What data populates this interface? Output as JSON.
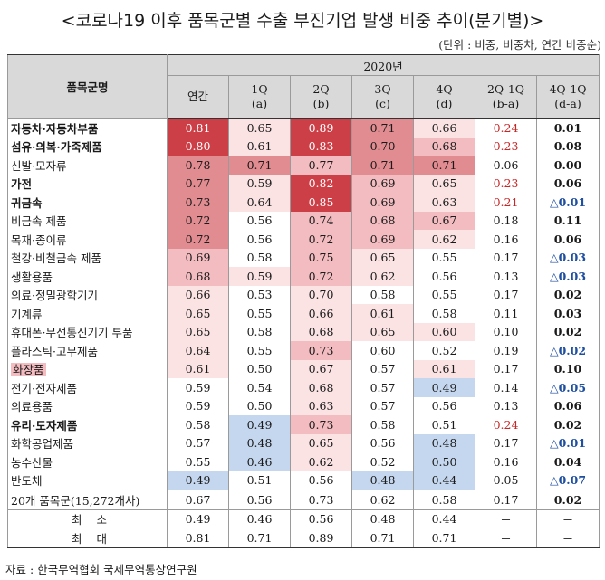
{
  "title": "<코로나19 이후 품목군별 수출 부진기업 발생 비중 추이(분기별)>",
  "unit": "(단위 : 비중, 비중차, 연간 비중순)",
  "header": {
    "item_col": "품목군명",
    "period": "2020년",
    "cols": [
      {
        "l1": "연간",
        "l2": ""
      },
      {
        "l1": "1Q",
        "l2": "(a)"
      },
      {
        "l1": "2Q",
        "l2": "(b)"
      },
      {
        "l1": "3Q",
        "l2": "(c)"
      },
      {
        "l1": "4Q",
        "l2": "(d)"
      },
      {
        "l1": "2Q-1Q",
        "l2": "(b-a)"
      },
      {
        "l1": "4Q-1Q",
        "l2": "(d-a)"
      }
    ]
  },
  "colors": {
    "dark_red": "#cd3f46",
    "mid_red": "#e08c91",
    "light_red": "#f3bcc0",
    "pale_red": "#fbe3e4",
    "blue": "#c5d7ee",
    "header_gray": "#d9d9d9",
    "red_text": "#c62828",
    "blue_text": "#1f4fa0"
  },
  "rows": [
    {
      "name": "자동차·자동차부품",
      "bold": true,
      "v": [
        "0.81",
        "0.65",
        "0.89",
        "0.71",
        "0.66"
      ],
      "bg": [
        "dark_red",
        "pale_red",
        "dark_red",
        "mid_red",
        "pale_red"
      ],
      "d1": "0.24",
      "d1c": "red",
      "d2": "0.01",
      "d2c": ""
    },
    {
      "name": "섬유·의복·가죽제품",
      "bold": true,
      "v": [
        "0.80",
        "0.61",
        "0.83",
        "0.70",
        "0.68"
      ],
      "bg": [
        "dark_red",
        "pale_red",
        "dark_red",
        "mid_red",
        "light_red"
      ],
      "d1": "0.23",
      "d1c": "red",
      "d2": "0.08",
      "d2c": ""
    },
    {
      "name": "신발·모자류",
      "bold": false,
      "v": [
        "0.78",
        "0.71",
        "0.77",
        "0.71",
        "0.71"
      ],
      "bg": [
        "mid_red",
        "mid_red",
        "light_red",
        "mid_red",
        "mid_red"
      ],
      "d1": "0.06",
      "d1c": "",
      "d2": "0.00",
      "d2c": ""
    },
    {
      "name": "가전",
      "bold": true,
      "v": [
        "0.77",
        "0.59",
        "0.82",
        "0.69",
        "0.65"
      ],
      "bg": [
        "mid_red",
        "pale_red",
        "dark_red",
        "light_red",
        "pale_red"
      ],
      "d1": "0.23",
      "d1c": "red",
      "d2": "0.06",
      "d2c": ""
    },
    {
      "name": "귀금속",
      "bold": true,
      "v": [
        "0.73",
        "0.64",
        "0.85",
        "0.69",
        "0.63"
      ],
      "bg": [
        "mid_red",
        "pale_red",
        "dark_red",
        "light_red",
        "pale_red"
      ],
      "d1": "0.21",
      "d1c": "red",
      "d2": "△0.01",
      "d2c": "blue"
    },
    {
      "name": "비금속 제품",
      "bold": false,
      "v": [
        "0.72",
        "0.56",
        "0.74",
        "0.68",
        "0.67"
      ],
      "bg": [
        "mid_red",
        "",
        "light_red",
        "light_red",
        "light_red"
      ],
      "d1": "0.18",
      "d1c": "",
      "d2": "0.11",
      "d2c": ""
    },
    {
      "name": "목재·종이류",
      "bold": false,
      "v": [
        "0.72",
        "0.56",
        "0.72",
        "0.69",
        "0.62"
      ],
      "bg": [
        "mid_red",
        "",
        "light_red",
        "light_red",
        "pale_red"
      ],
      "d1": "0.16",
      "d1c": "",
      "d2": "0.06",
      "d2c": ""
    },
    {
      "name": "철강·비철금속 제품",
      "bold": false,
      "v": [
        "0.69",
        "0.58",
        "0.75",
        "0.65",
        "0.55"
      ],
      "bg": [
        "light_red",
        "",
        "light_red",
        "pale_red",
        ""
      ],
      "d1": "0.17",
      "d1c": "",
      "d2": "△0.03",
      "d2c": "blue"
    },
    {
      "name": "생활용품",
      "bold": false,
      "v": [
        "0.68",
        "0.59",
        "0.72",
        "0.62",
        "0.56"
      ],
      "bg": [
        "light_red",
        "pale_red",
        "light_red",
        "pale_red",
        ""
      ],
      "d1": "0.13",
      "d1c": "",
      "d2": "△0.03",
      "d2c": "blue"
    },
    {
      "name": "의료·정밀광학기기",
      "bold": false,
      "v": [
        "0.66",
        "0.53",
        "0.70",
        "0.58",
        "0.55"
      ],
      "bg": [
        "pale_red",
        "",
        "pale_red",
        "",
        ""
      ],
      "d1": "0.17",
      "d1c": "",
      "d2": "0.02",
      "d2c": ""
    },
    {
      "name": "기계류",
      "bold": false,
      "v": [
        "0.65",
        "0.55",
        "0.66",
        "0.61",
        "0.58"
      ],
      "bg": [
        "pale_red",
        "",
        "pale_red",
        "pale_red",
        ""
      ],
      "d1": "0.11",
      "d1c": "",
      "d2": "0.03",
      "d2c": ""
    },
    {
      "name": "휴대폰·무선통신기기 부품",
      "bold": false,
      "v": [
        "0.65",
        "0.58",
        "0.68",
        "0.65",
        "0.60"
      ],
      "bg": [
        "pale_red",
        "",
        "pale_red",
        "pale_red",
        "pale_red"
      ],
      "d1": "0.10",
      "d1c": "",
      "d2": "0.02",
      "d2c": ""
    },
    {
      "name": "플라스틱·고무제품",
      "bold": false,
      "v": [
        "0.64",
        "0.55",
        "0.73",
        "0.60",
        "0.52"
      ],
      "bg": [
        "pale_red",
        "",
        "light_red",
        "",
        ""
      ],
      "d1": "0.19",
      "d1c": "",
      "d2": "△0.02",
      "d2c": "blue"
    },
    {
      "name": "화장품",
      "bold": false,
      "hl": true,
      "v": [
        "0.61",
        "0.50",
        "0.67",
        "0.57",
        "0.61"
      ],
      "bg": [
        "pale_red",
        "",
        "pale_red",
        "",
        "pale_red"
      ],
      "d1": "0.17",
      "d1c": "",
      "d2": "0.10",
      "d2c": ""
    },
    {
      "name": "전기·전자제품",
      "bold": false,
      "v": [
        "0.59",
        "0.54",
        "0.68",
        "0.57",
        "0.49"
      ],
      "bg": [
        "",
        "",
        "pale_red",
        "",
        "blue"
      ],
      "d1": "0.14",
      "d1c": "",
      "d2": "△0.05",
      "d2c": "blue"
    },
    {
      "name": "의료용품",
      "bold": false,
      "v": [
        "0.59",
        "0.50",
        "0.63",
        "0.57",
        "0.56"
      ],
      "bg": [
        "",
        "",
        "pale_red",
        "",
        ""
      ],
      "d1": "0.13",
      "d1c": "",
      "d2": "0.06",
      "d2c": ""
    },
    {
      "name": "유리·도자제품",
      "bold": true,
      "v": [
        "0.58",
        "0.49",
        "0.73",
        "0.58",
        "0.51"
      ],
      "bg": [
        "",
        "blue",
        "light_red",
        "",
        ""
      ],
      "d1": "0.24",
      "d1c": "red",
      "d2": "0.02",
      "d2c": ""
    },
    {
      "name": "화학공업제품",
      "bold": false,
      "v": [
        "0.57",
        "0.48",
        "0.65",
        "0.56",
        "0.48"
      ],
      "bg": [
        "",
        "blue",
        "pale_red",
        "",
        "blue"
      ],
      "d1": "0.17",
      "d1c": "",
      "d2": "△0.01",
      "d2c": "blue"
    },
    {
      "name": "농수산물",
      "bold": false,
      "v": [
        "0.55",
        "0.46",
        "0.62",
        "0.52",
        "0.50"
      ],
      "bg": [
        "",
        "blue",
        "pale_red",
        "",
        "blue"
      ],
      "d1": "0.16",
      "d1c": "",
      "d2": "0.04",
      "d2c": ""
    },
    {
      "name": "반도체",
      "bold": false,
      "v": [
        "0.49",
        "0.51",
        "0.56",
        "0.48",
        "0.44"
      ],
      "bg": [
        "blue",
        "",
        "",
        "blue",
        "blue"
      ],
      "d1": "0.05",
      "d1c": "",
      "d2": "△0.07",
      "d2c": "blue"
    }
  ],
  "summary": [
    {
      "name": "20개 품목군(15,272개사)",
      "v": [
        "0.67",
        "0.56",
        "0.73",
        "0.62",
        "0.58"
      ],
      "d1": "0.17",
      "d2": "0.02",
      "type": "total"
    },
    {
      "name": "최 소",
      "v": [
        "0.49",
        "0.46",
        "0.56",
        "0.48",
        "0.44"
      ],
      "d1": "－",
      "d2": "－",
      "type": "min"
    },
    {
      "name": "최 대",
      "v": [
        "0.81",
        "0.71",
        "0.89",
        "0.71",
        "0.71"
      ],
      "d1": "－",
      "d2": "－",
      "type": "max"
    }
  ],
  "source": "자료 : 한국무역협회 국제무역통상연구원"
}
